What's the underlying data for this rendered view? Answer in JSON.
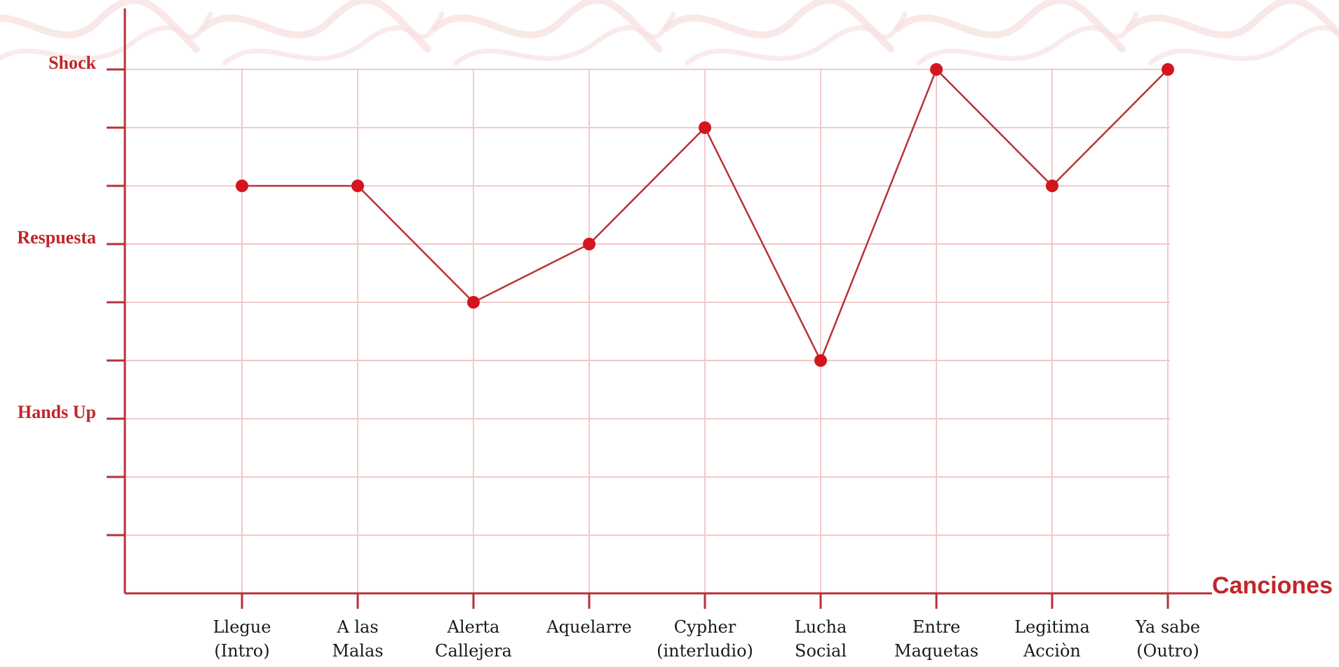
{
  "chart_data": {
    "type": "line",
    "title": "",
    "xlabel": "Canciones",
    "ylabel": "",
    "categories": [
      [
        "Llegue",
        "(Intro)"
      ],
      [
        "A las",
        "Malas"
      ],
      [
        "Alerta",
        "Callejera"
      ],
      [
        "Aquelarre"
      ],
      [
        "Cypher",
        "(interludio)"
      ],
      [
        "Lucha",
        "Social"
      ],
      [
        "Entre",
        "Maquetas"
      ],
      [
        "Legitima",
        "Acciòn"
      ],
      [
        "Ya sabe",
        "(Outro)"
      ]
    ],
    "y_levels": [
      {
        "value": 9,
        "label": "Shock"
      },
      {
        "value": 6,
        "label": "Respuesta"
      },
      {
        "value": 3,
        "label": "Hands Up"
      }
    ],
    "ylim": [
      0,
      9
    ],
    "y_ticks": [
      1,
      2,
      3,
      4,
      5,
      6,
      7,
      8,
      9
    ],
    "values": [
      7,
      7,
      5,
      6,
      8,
      4,
      9,
      7,
      9
    ],
    "grid": true,
    "colors": {
      "line": "#b83236",
      "marker": "#d4151f",
      "axis": "#b83236",
      "grid": "#f2c9c9",
      "label": "#c0262c",
      "background_pattern": "#f6dede"
    }
  }
}
